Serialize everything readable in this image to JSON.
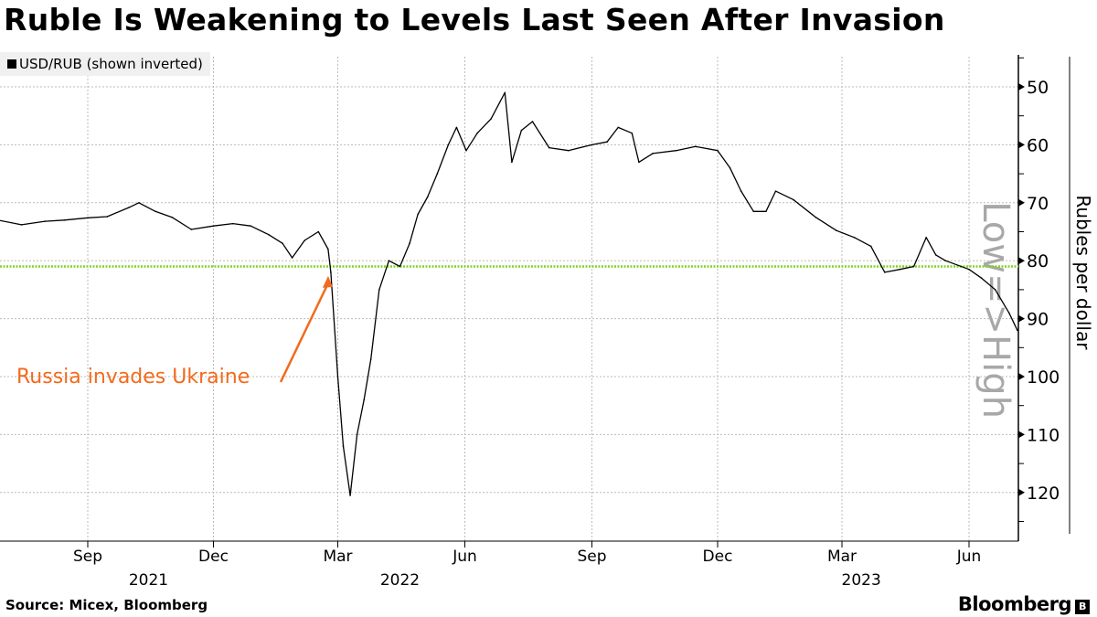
{
  "title": "Ruble Is Weakening to Levels Last Seen After Invasion",
  "legend": "USD/RUB (shown inverted)",
  "source": "Source: Micex, Bloomberg",
  "logo": "Bloomberg",
  "chart_data": {
    "type": "line",
    "title": "Ruble Is Weakening to Levels Last Seen After Invasion",
    "ylabel": "Rubles per dollar",
    "direction_label": "Low=>High",
    "y_inverted": true,
    "ylim": [
      45,
      128
    ],
    "yticks": [
      50,
      60,
      70,
      80,
      90,
      100,
      110,
      120
    ],
    "xlim": [
      "2021-06-28",
      "2023-07-15"
    ],
    "xticks": [
      {
        "date": "2021-09-01",
        "label": "Sep"
      },
      {
        "date": "2021-12-01",
        "label": "Dec"
      },
      {
        "date": "2022-03-01",
        "label": "Mar"
      },
      {
        "date": "2022-06-01",
        "label": "Jun"
      },
      {
        "date": "2022-09-01",
        "label": "Sep"
      },
      {
        "date": "2022-12-01",
        "label": "Dec"
      },
      {
        "date": "2023-03-01",
        "label": "Mar"
      },
      {
        "date": "2023-06-01",
        "label": "Jun"
      }
    ],
    "year_labels": [
      {
        "date": "2021-10-15",
        "label": "2021"
      },
      {
        "date": "2022-04-15",
        "label": "2022"
      },
      {
        "date": "2023-03-15",
        "label": "2023"
      }
    ],
    "grid": true,
    "reference_line": {
      "value": 81,
      "color": "#7ed321"
    },
    "annotation": {
      "text": "Russia invades Ukraine",
      "date": "2022-02-24",
      "value": 82,
      "color": "#f26a1b"
    },
    "series": [
      {
        "color": "#000000",
        "points": [
          [
            "2021-06-28",
            73
          ],
          [
            "2021-07-15",
            73.8
          ],
          [
            "2021-08-01",
            73.2
          ],
          [
            "2021-08-15",
            73
          ],
          [
            "2021-09-01",
            72.6
          ],
          [
            "2021-09-15",
            72.4
          ],
          [
            "2021-10-01",
            70.8
          ],
          [
            "2021-10-08",
            70
          ],
          [
            "2021-10-20",
            71.5
          ],
          [
            "2021-11-01",
            72.5
          ],
          [
            "2021-11-15",
            74.6
          ],
          [
            "2021-12-01",
            74
          ],
          [
            "2021-12-15",
            73.6
          ],
          [
            "2021-12-28",
            74
          ],
          [
            "2022-01-10",
            75.5
          ],
          [
            "2022-01-20",
            77
          ],
          [
            "2022-01-27",
            79.5
          ],
          [
            "2022-02-05",
            76.5
          ],
          [
            "2022-02-15",
            75
          ],
          [
            "2022-02-22",
            78
          ],
          [
            "2022-02-24",
            82
          ],
          [
            "2022-03-01",
            100
          ],
          [
            "2022-03-05",
            112
          ],
          [
            "2022-03-10",
            120.5
          ],
          [
            "2022-03-15",
            110
          ],
          [
            "2022-03-20",
            104
          ],
          [
            "2022-03-25",
            97
          ],
          [
            "2022-03-31",
            85
          ],
          [
            "2022-04-07",
            80
          ],
          [
            "2022-04-15",
            81
          ],
          [
            "2022-04-22",
            77
          ],
          [
            "2022-04-28",
            72
          ],
          [
            "2022-05-05",
            69
          ],
          [
            "2022-05-12",
            65
          ],
          [
            "2022-05-20",
            60
          ],
          [
            "2022-05-26",
            57
          ],
          [
            "2022-06-02",
            61
          ],
          [
            "2022-06-10",
            58
          ],
          [
            "2022-06-20",
            55.5
          ],
          [
            "2022-06-30",
            51
          ],
          [
            "2022-07-05",
            63
          ],
          [
            "2022-07-12",
            57.5
          ],
          [
            "2022-07-20",
            56
          ],
          [
            "2022-08-01",
            60.5
          ],
          [
            "2022-08-15",
            61
          ],
          [
            "2022-09-01",
            60
          ],
          [
            "2022-09-12",
            59.5
          ],
          [
            "2022-09-20",
            57
          ],
          [
            "2022-09-30",
            58
          ],
          [
            "2022-10-05",
            63
          ],
          [
            "2022-10-15",
            61.5
          ],
          [
            "2022-11-01",
            61
          ],
          [
            "2022-11-15",
            60.3
          ],
          [
            "2022-12-01",
            61
          ],
          [
            "2022-12-10",
            64
          ],
          [
            "2022-12-18",
            68
          ],
          [
            "2022-12-27",
            71.5
          ],
          [
            "2023-01-05",
            71.5
          ],
          [
            "2023-01-12",
            68
          ],
          [
            "2023-01-25",
            69.5
          ],
          [
            "2023-02-10",
            72.5
          ],
          [
            "2023-02-25",
            74.8
          ],
          [
            "2023-03-10",
            76
          ],
          [
            "2023-03-22",
            77.5
          ],
          [
            "2023-04-01",
            82
          ],
          [
            "2023-04-12",
            81.5
          ],
          [
            "2023-04-22",
            81
          ],
          [
            "2023-05-01",
            76
          ],
          [
            "2023-05-08",
            79
          ],
          [
            "2023-05-15",
            80
          ],
          [
            "2023-06-01",
            81.5
          ],
          [
            "2023-06-10",
            83
          ],
          [
            "2023-06-20",
            85
          ],
          [
            "2023-06-30",
            89
          ],
          [
            "2023-07-06",
            92
          ]
        ]
      }
    ]
  }
}
